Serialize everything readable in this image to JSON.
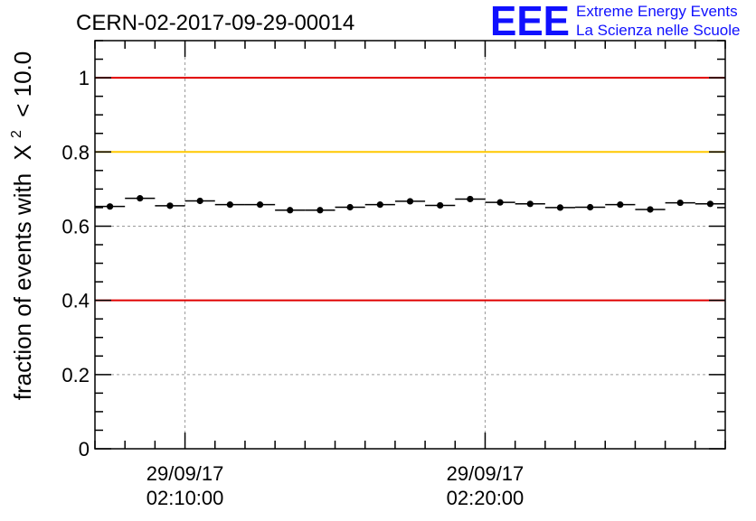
{
  "chart_data": {
    "type": "scatter",
    "title": "CERN-02-2017-09-29-00014",
    "ylabel_prefix": "fraction of events with",
    "ylabel_chi": "X",
    "ylabel_sup": "2",
    "ylabel_suffix": "< 10.0",
    "xlabel": "",
    "x_unit": "minutes after 29/09/17 02:07:00",
    "ylim": [
      0,
      1.1
    ],
    "yticks": [
      {
        "value": 0,
        "label": "0"
      },
      {
        "value": 0.2,
        "label": "0.2"
      },
      {
        "value": 0.4,
        "label": "0.4"
      },
      {
        "value": 0.6,
        "label": "0.6"
      },
      {
        "value": 0.8,
        "label": "0.8"
      },
      {
        "value": 1,
        "label": "1"
      }
    ],
    "xlim": [
      0,
      21
    ],
    "xticks_labeled": [
      {
        "value": 3,
        "date": "29/09/17",
        "time": "02:10:00"
      },
      {
        "value": 13,
        "date": "29/09/17",
        "time": "02:20:00"
      }
    ],
    "grid": true,
    "reference_lines": [
      {
        "y": 1.0,
        "color": "#e00000"
      },
      {
        "y": 0.8,
        "color": "#ffc800"
      },
      {
        "y": 0.4,
        "color": "#e00000"
      }
    ],
    "bin_width": 1,
    "x": [
      0.5,
      1.5,
      2.5,
      3.5,
      4.5,
      5.5,
      6.5,
      7.5,
      8.5,
      9.5,
      10.5,
      11.5,
      12.5,
      13.5,
      14.5,
      15.5,
      16.5,
      17.5,
      18.5,
      19.5,
      20.5
    ],
    "values": [
      0.653,
      0.675,
      0.655,
      0.668,
      0.658,
      0.658,
      0.643,
      0.643,
      0.651,
      0.658,
      0.667,
      0.656,
      0.673,
      0.664,
      0.66,
      0.65,
      0.651,
      0.658,
      0.645,
      0.663,
      0.66
    ]
  },
  "logo": {
    "letters": "EEE",
    "line1": "Extreme Energy Events",
    "line2": "La Scienza nelle Scuole",
    "color": "#1010ff"
  }
}
